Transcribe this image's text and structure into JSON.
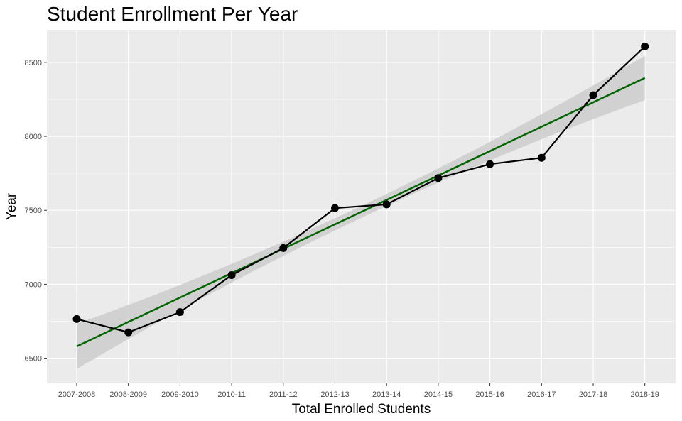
{
  "chart_data": {
    "type": "line",
    "title": "Student Enrollment Per Year",
    "xlabel": "Total Enrolled Students",
    "ylabel": "Year",
    "categories": [
      "2007-2008",
      "2008-2009",
      "2009-2010",
      "2010-11",
      "2011-12",
      "2012-13",
      "2013-14",
      "2014-15",
      "2015-16",
      "2016-17",
      "2017-18",
      "2018-19"
    ],
    "series": [
      {
        "values": [
          6765,
          6675,
          6812,
          7062,
          7245,
          7515,
          7540,
          7718,
          7812,
          7855,
          8278,
          8608
        ]
      }
    ],
    "trend": {
      "type": "linear",
      "start": 6580,
      "end": 8395,
      "band_lower": [
        6430,
        8245
      ],
      "band_upper": [
        6735,
        8545
      ]
    },
    "ylim": [
      6330,
      8720
    ],
    "yticks": [
      6500,
      7000,
      7500,
      8000,
      8500
    ],
    "grid": true,
    "colors": {
      "panel": "#ebebeb",
      "grid": "#ffffff",
      "band": "#cccccc",
      "line": "#000000",
      "points": "#000000",
      "trend": "#006400"
    }
  }
}
